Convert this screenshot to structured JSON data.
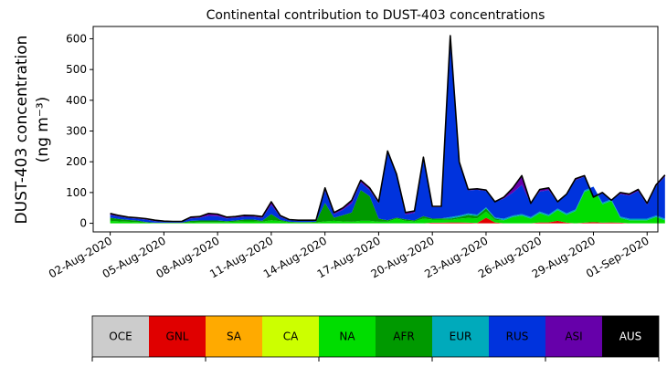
{
  "chart_data": {
    "type": "area",
    "stacked": true,
    "title": "Continental contribution to DUST-403 concentrations",
    "ylabel_line1": "DUST-403 concentration",
    "ylabel_line2": "(ng m⁻³)",
    "xlabel": "",
    "x_start_date": "2020-08-01",
    "x_step_days": 0.5,
    "x_range_days": [
      0.05,
      31.6
    ],
    "ylim": [
      -28,
      640
    ],
    "yticks": [
      0,
      100,
      200,
      300,
      400,
      500,
      600
    ],
    "xticks": [
      {
        "day": 1,
        "label": "02-Aug-2020"
      },
      {
        "day": 4,
        "label": "05-Aug-2020"
      },
      {
        "day": 7,
        "label": "08-Aug-2020"
      },
      {
        "day": 10,
        "label": "11-Aug-2020"
      },
      {
        "day": 13,
        "label": "14-Aug-2020"
      },
      {
        "day": 16,
        "label": "17-Aug-2020"
      },
      {
        "day": 19,
        "label": "20-Aug-2020"
      },
      {
        "day": 22,
        "label": "23-Aug-2020"
      },
      {
        "day": 25,
        "label": "26-Aug-2020"
      },
      {
        "day": 28,
        "label": "29-Aug-2020"
      },
      {
        "day": 31,
        "label": "01-Sep-2020"
      }
    ],
    "total": [
      32,
      25,
      20,
      18,
      15,
      10,
      7,
      6,
      6,
      20,
      22,
      32,
      30,
      20,
      22,
      26,
      25,
      22,
      70,
      25,
      12,
      10,
      10,
      10,
      115,
      35,
      50,
      75,
      140,
      115,
      70,
      235,
      160,
      35,
      40,
      215,
      55,
      55,
      610,
      200,
      110,
      112,
      108,
      70,
      85,
      115,
      155,
      65,
      110,
      115,
      70,
      95,
      145,
      155,
      85,
      100,
      75,
      100,
      95,
      110,
      65,
      125,
      157
    ],
    "series": [
      {
        "name": "OCE",
        "color": "#cccccc",
        "values": [
          0,
          0,
          0,
          0,
          0,
          0,
          0,
          0,
          0,
          0,
          0,
          0,
          0,
          0,
          0,
          0,
          0,
          0,
          0,
          0,
          0,
          0,
          0,
          0,
          0,
          0,
          0,
          0,
          0,
          0,
          0,
          0,
          0,
          0,
          0,
          0,
          0,
          0,
          0,
          0,
          0,
          0,
          0,
          0,
          0,
          0,
          0,
          0,
          0,
          0,
          0,
          0,
          0,
          0,
          0,
          0,
          0,
          0,
          0,
          0,
          0,
          0,
          0
        ]
      },
      {
        "name": "GNL",
        "color": "#e00000",
        "values": [
          0,
          0,
          0,
          0,
          0,
          0,
          0,
          0,
          0,
          0,
          0,
          0,
          0,
          0,
          0,
          0,
          0,
          0,
          0,
          0,
          0,
          0,
          0,
          0,
          0,
          0,
          0,
          0,
          0,
          0,
          0,
          0,
          0,
          0,
          0,
          0,
          2,
          2,
          3,
          3,
          2,
          1,
          18,
          3,
          0,
          0,
          0,
          0,
          3,
          3,
          8,
          2,
          0,
          2,
          4,
          2,
          3,
          2,
          0,
          0,
          0,
          0,
          0
        ]
      },
      {
        "name": "SA",
        "color": "#ffaa00",
        "values": [
          0,
          0,
          0,
          0,
          0,
          0,
          0,
          0,
          0,
          0,
          0,
          0,
          0,
          0,
          0,
          0,
          0,
          0,
          0,
          0,
          0,
          0,
          0,
          0,
          0,
          0,
          0,
          0,
          0,
          0,
          0,
          0,
          0,
          0,
          0,
          0,
          0,
          0,
          0,
          0,
          0,
          0,
          0,
          0,
          0,
          0,
          0,
          0,
          0,
          0,
          0,
          0,
          0,
          0,
          0,
          0,
          0,
          0,
          0,
          0,
          0,
          0,
          0
        ]
      },
      {
        "name": "CA",
        "color": "#ccff00",
        "values": [
          0,
          0,
          0,
          0,
          0,
          0,
          0,
          0,
          0,
          0,
          0,
          0,
          0,
          0,
          0,
          0,
          0,
          0,
          0,
          0,
          0,
          0,
          0,
          0,
          0,
          0,
          0,
          0,
          0,
          0,
          0,
          0,
          0,
          0,
          0,
          0,
          0,
          0,
          0,
          0,
          0,
          0,
          0,
          0,
          0,
          0,
          0,
          0,
          0,
          0,
          0,
          0,
          0,
          0,
          0,
          0,
          0,
          0,
          0,
          0,
          0,
          0,
          0
        ]
      },
      {
        "name": "NA",
        "color": "#00dd00",
        "values": [
          8,
          6,
          5,
          4,
          2,
          1,
          1,
          1,
          1,
          3,
          4,
          4,
          4,
          4,
          5,
          6,
          6,
          5,
          10,
          7,
          3,
          2,
          2,
          3,
          6,
          8,
          6,
          5,
          8,
          8,
          5,
          5,
          15,
          8,
          6,
          15,
          10,
          10,
          8,
          12,
          15,
          15,
          20,
          8,
          10,
          20,
          25,
          15,
          30,
          20,
          35,
          25,
          40,
          100,
          110,
          60,
          70,
          15,
          10,
          10,
          10,
          20,
          10
        ]
      },
      {
        "name": "AFR",
        "color": "#009900",
        "values": [
          10,
          8,
          6,
          5,
          2,
          1,
          1,
          1,
          1,
          5,
          5,
          5,
          5,
          3,
          4,
          6,
          6,
          3,
          20,
          4,
          2,
          2,
          2,
          2,
          60,
          10,
          20,
          30,
          100,
          80,
          10,
          5,
          3,
          5,
          3,
          8,
          3,
          4,
          4,
          5,
          10,
          8,
          10,
          5,
          0,
          0,
          0,
          0,
          0,
          0,
          0,
          0,
          0,
          0,
          0,
          0,
          0,
          0,
          0,
          0,
          0,
          0,
          0
        ]
      },
      {
        "name": "EUR",
        "color": "#00aabb",
        "values": [
          0,
          0,
          0,
          0,
          0,
          0,
          0,
          0,
          0,
          0,
          0,
          0,
          0,
          0,
          0,
          0,
          0,
          0,
          0,
          0,
          0,
          0,
          0,
          0,
          0,
          0,
          0,
          0,
          0,
          0,
          0,
          0,
          0,
          0,
          0,
          0,
          0,
          0,
          5,
          5,
          5,
          4,
          4,
          3,
          5,
          5,
          5,
          5,
          5,
          5,
          5,
          5,
          5,
          5,
          5,
          5,
          5,
          5,
          5,
          5,
          5,
          5,
          5
        ]
      },
      {
        "name": "RUS",
        "color": "#0033dd",
        "values": [
          9,
          8,
          6,
          6,
          8,
          5,
          3,
          3,
          3,
          8,
          9,
          15,
          14,
          9,
          9,
          9,
          9,
          9,
          30,
          10,
          5,
          4,
          4,
          3,
          40,
          12,
          18,
          30,
          25,
          20,
          50,
          220,
          140,
          15,
          25,
          185,
          38,
          37,
          586,
          172,
          75,
          81,
          53,
          51,
          65,
          75,
          95,
          45,
          65,
          80,
          20,
          63,
          95,
          45,
          -34,
          30,
          -3,
          73,
          75,
          90,
          45,
          95,
          137
        ]
      },
      {
        "name": "ASI",
        "color": "#6600aa",
        "values": [
          5,
          3,
          3,
          3,
          3,
          3,
          2,
          1,
          1,
          4,
          4,
          8,
          7,
          4,
          4,
          5,
          4,
          5,
          10,
          4,
          2,
          2,
          2,
          2,
          9,
          5,
          6,
          10,
          7,
          7,
          5,
          5,
          2,
          7,
          6,
          7,
          2,
          2,
          4,
          3,
          3,
          3,
          3,
          3,
          5,
          15,
          30,
          0,
          7,
          7,
          2,
          0,
          5,
          3,
          0,
          3,
          0,
          5,
          5,
          5,
          5,
          5,
          5
        ]
      },
      {
        "name": "AUS",
        "color": "#000000",
        "values": [
          0,
          0,
          0,
          0,
          0,
          0,
          0,
          0,
          0,
          0,
          0,
          0,
          0,
          0,
          0,
          0,
          0,
          0,
          0,
          0,
          0,
          0,
          0,
          0,
          0,
          0,
          0,
          0,
          0,
          0,
          0,
          0,
          0,
          0,
          0,
          0,
          0,
          0,
          0,
          0,
          0,
          0,
          0,
          0,
          0,
          0,
          0,
          0,
          0,
          0,
          0,
          0,
          0,
          0,
          0,
          0,
          0,
          0,
          0,
          0,
          0,
          0,
          0
        ]
      }
    ],
    "legend_position": "below",
    "legend": [
      {
        "label": "OCE",
        "color": "#cccccc",
        "text_color": "#000000"
      },
      {
        "label": "GNL",
        "color": "#e00000",
        "text_color": "#000000"
      },
      {
        "label": "SA",
        "color": "#ffaa00",
        "text_color": "#000000"
      },
      {
        "label": "CA",
        "color": "#ccff00",
        "text_color": "#000000"
      },
      {
        "label": "NA",
        "color": "#00dd00",
        "text_color": "#000000"
      },
      {
        "label": "AFR",
        "color": "#009900",
        "text_color": "#000000"
      },
      {
        "label": "EUR",
        "color": "#00aabb",
        "text_color": "#000000"
      },
      {
        "label": "RUS",
        "color": "#0033dd",
        "text_color": "#000000"
      },
      {
        "label": "ASI",
        "color": "#6600aa",
        "text_color": "#000000"
      },
      {
        "label": "AUS",
        "color": "#000000",
        "text_color": "#ffffff"
      }
    ]
  }
}
